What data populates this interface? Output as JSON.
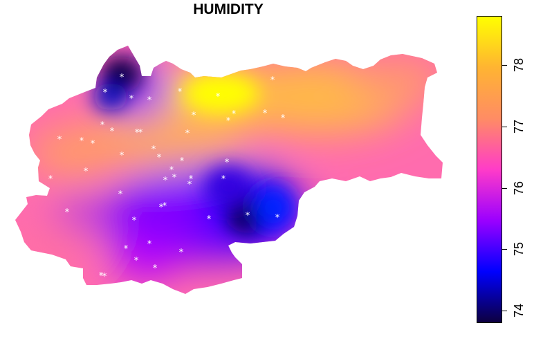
{
  "title": "HUMIDITY",
  "legend": {
    "ticks": [
      74,
      75,
      76,
      77,
      78
    ],
    "min": 73.8,
    "max": 78.8,
    "colors": [
      "#0d0040",
      "#0000ff",
      "#9b00ff",
      "#ff3cc8",
      "#ff8c64",
      "#ffb432",
      "#ffff00"
    ]
  },
  "colors": {
    "station_marker": "#ffffff",
    "low": "#0d0040",
    "mid_low": "#0000ff",
    "mid": "#9b00ff",
    "mid_high": "#ff5ab4",
    "high": "#ffb432",
    "max": "#ffff00"
  },
  "markers": {
    "icon": "star-glyph",
    "glyph": "*",
    "count": 48
  }
}
